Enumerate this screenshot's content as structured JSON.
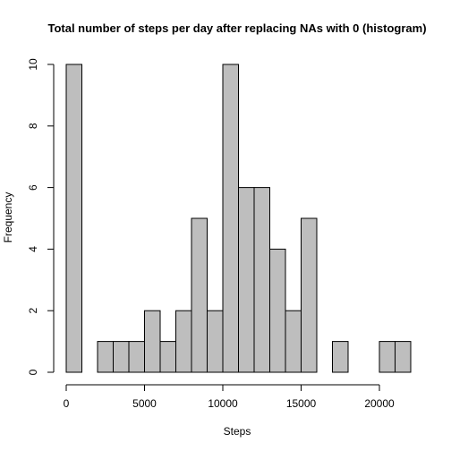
{
  "chart_data": {
    "type": "bar",
    "title": "Total number of steps per day after replacing NAs with 0 (histogram)",
    "xlabel": "Steps",
    "ylabel": "Frequency",
    "bin_width": 1000,
    "bin_starts": [
      0,
      1000,
      2000,
      3000,
      4000,
      5000,
      6000,
      7000,
      8000,
      9000,
      10000,
      11000,
      12000,
      13000,
      14000,
      15000,
      16000,
      17000,
      18000,
      19000,
      20000,
      21000
    ],
    "values": [
      10,
      0,
      1,
      1,
      1,
      2,
      1,
      2,
      5,
      2,
      10,
      6,
      6,
      4,
      2,
      5,
      0,
      1,
      0,
      0,
      1,
      1
    ],
    "xlim": [
      0,
      22000
    ],
    "ylim": [
      0,
      10
    ],
    "x_ticks": [
      0,
      5000,
      10000,
      15000,
      20000
    ],
    "y_ticks": [
      0,
      2,
      4,
      6,
      8,
      10
    ],
    "x_tick_labels": [
      "0",
      "5000",
      "10000",
      "15000",
      "20000"
    ],
    "y_tick_labels": [
      "0",
      "2",
      "4",
      "6",
      "8",
      "10"
    ],
    "grid": false,
    "legend": "none"
  }
}
